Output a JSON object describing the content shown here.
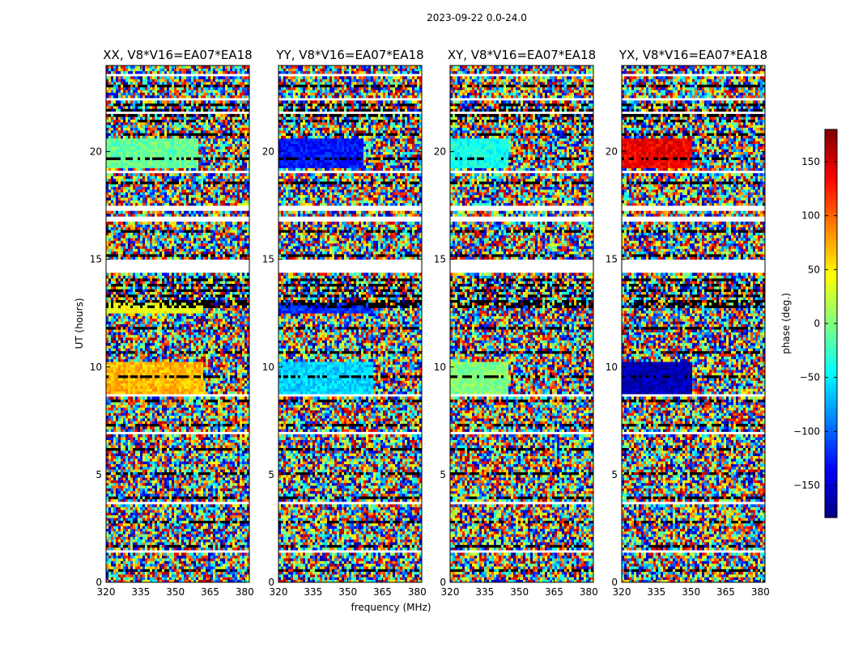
{
  "chart_data": {
    "type": "heatmap",
    "suptitle": "2023-09-22 0.0-24.0",
    "xlabel": "frequency (MHz)",
    "ylabel": "UT (hours)",
    "xlim": [
      320,
      382
    ],
    "ylim": [
      0,
      24
    ],
    "xticks": [
      320,
      335,
      350,
      365,
      380
    ],
    "yticks": [
      0,
      5,
      10,
      15,
      20
    ],
    "colorbar": {
      "label": "phase (deg.)",
      "range": [
        -180,
        180
      ],
      "ticks": [
        150,
        100,
        50,
        0,
        -50,
        -100,
        -150
      ],
      "tick_labels": [
        "150",
        "100",
        "50",
        "0",
        "−50",
        "−100",
        "−150"
      ],
      "colormap": "jet"
    },
    "panels": [
      {
        "title": "XX, V8*V16=EA07*EA18",
        "coherent_phase_deg": [
          {
            "ut": [
              19.3,
              20.6
            ],
            "phase": -10,
            "freq_max": 360
          },
          {
            "ut": [
              8.8,
              10.2
            ],
            "phase": 70,
            "freq_max": 362
          },
          {
            "ut": [
              12.5,
              13.0
            ],
            "phase": 40,
            "freq_max": 362
          }
        ]
      },
      {
        "title": "YY, V8*V16=EA07*EA18",
        "coherent_phase_deg": [
          {
            "ut": [
              19.3,
              20.6
            ],
            "phase": -130,
            "freq_max": 357
          },
          {
            "ut": [
              8.8,
              10.2
            ],
            "phase": -60,
            "freq_max": 361
          },
          {
            "ut": [
              12.5,
              13.0
            ],
            "phase": -120,
            "freq_max": 361
          }
        ]
      },
      {
        "title": "XY, V8*V16=EA07*EA18",
        "coherent_phase_deg": [
          {
            "ut": [
              19.3,
              20.6
            ],
            "phase": -40,
            "freq_max": 345
          },
          {
            "ut": [
              8.8,
              10.2
            ],
            "phase": 0,
            "freq_max": 345
          }
        ]
      },
      {
        "title": "YX, V8*V16=EA07*EA18",
        "coherent_phase_deg": [
          {
            "ut": [
              19.3,
              20.6
            ],
            "phase": 140,
            "freq_max": 350
          },
          {
            "ut": [
              8.8,
              10.2
            ],
            "phase": -160,
            "freq_max": 350
          }
        ]
      }
    ],
    "flagged_ut": [
      [
        23.45,
        23.6
      ],
      [
        22.35,
        22.5
      ],
      [
        21.8,
        21.9
      ],
      [
        17.3,
        17.55
      ],
      [
        16.8,
        17.05
      ],
      [
        14.35,
        15.0
      ],
      [
        15.2,
        15.3
      ],
      [
        19.05,
        19.15
      ],
      [
        8.65,
        8.75
      ],
      [
        6.9,
        6.98
      ],
      [
        4.45,
        4.52
      ],
      [
        3.6,
        3.7
      ],
      [
        1.4,
        1.5
      ],
      [
        0.35,
        0.42
      ]
    ]
  }
}
